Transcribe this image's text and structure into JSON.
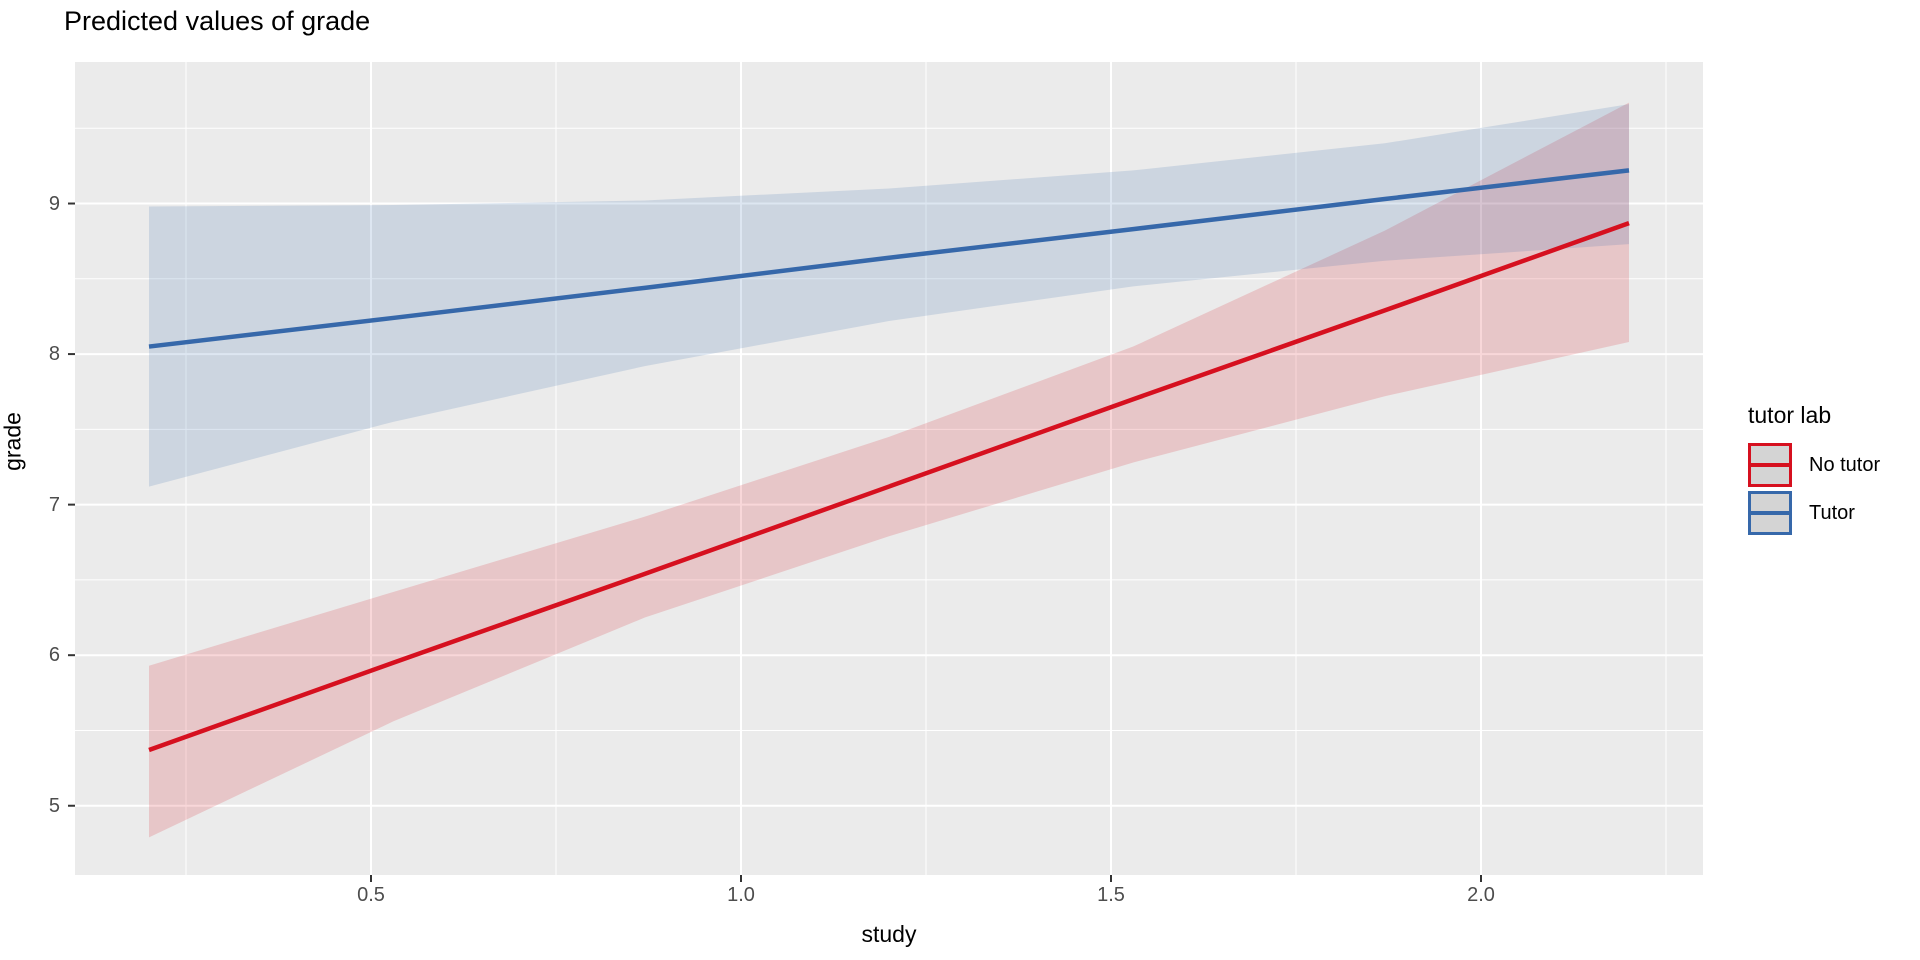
{
  "title": "Predicted values of grade",
  "chart_data": {
    "type": "line",
    "title": "Predicted values of grade",
    "xlabel": "study",
    "ylabel": "grade",
    "xlim": [
      0.1,
      2.3
    ],
    "ylim": [
      4.54,
      9.94
    ],
    "grid": true,
    "panel_bg": "#ebebeb",
    "grid_color": "#ffffff",
    "tick_color": "#333333",
    "tick_label_color": "#4d4d4d",
    "ribbon_opacity": 0.17,
    "x_ticks": {
      "major": [
        0.5,
        1.0,
        1.5,
        2.0
      ],
      "major_labels": [
        "0.5",
        "1.0",
        "1.5",
        "2.0"
      ],
      "minor": [
        0.25,
        0.75,
        1.25,
        1.75,
        2.25
      ]
    },
    "y_ticks": {
      "major": [
        5,
        6,
        7,
        8,
        9
      ],
      "major_labels": [
        "5",
        "6",
        "7",
        "8",
        "9"
      ],
      "minor": [
        5.5,
        6.5,
        7.5,
        8.5,
        9.5
      ]
    },
    "x": [
      0.2,
      0.53,
      0.87,
      1.2,
      1.53,
      1.87,
      2.2
    ],
    "series": [
      {
        "name": "No tutor",
        "color": "#d6101f",
        "values": [
          5.37,
          5.95,
          6.54,
          7.12,
          7.7,
          8.29,
          8.87
        ],
        "ci_lower": [
          4.79,
          5.56,
          6.25,
          6.79,
          7.28,
          7.72,
          8.08
        ],
        "ci_upper": [
          5.93,
          6.42,
          6.92,
          7.45,
          8.05,
          8.82,
          9.67
        ]
      },
      {
        "name": "Tutor",
        "color": "#3668aa",
        "values": [
          8.05,
          8.24,
          8.44,
          8.64,
          8.83,
          9.03,
          9.22
        ],
        "ci_lower": [
          7.12,
          7.55,
          7.92,
          8.22,
          8.45,
          8.62,
          8.73
        ],
        "ci_upper": [
          8.98,
          8.99,
          9.02,
          9.1,
          9.22,
          9.4,
          9.66
        ]
      }
    ],
    "legend": {
      "title": "tutor lab",
      "position": "right",
      "entries": [
        {
          "label": "No tutor",
          "color": "#d6101f"
        },
        {
          "label": "Tutor",
          "color": "#3668aa"
        }
      ]
    }
  }
}
